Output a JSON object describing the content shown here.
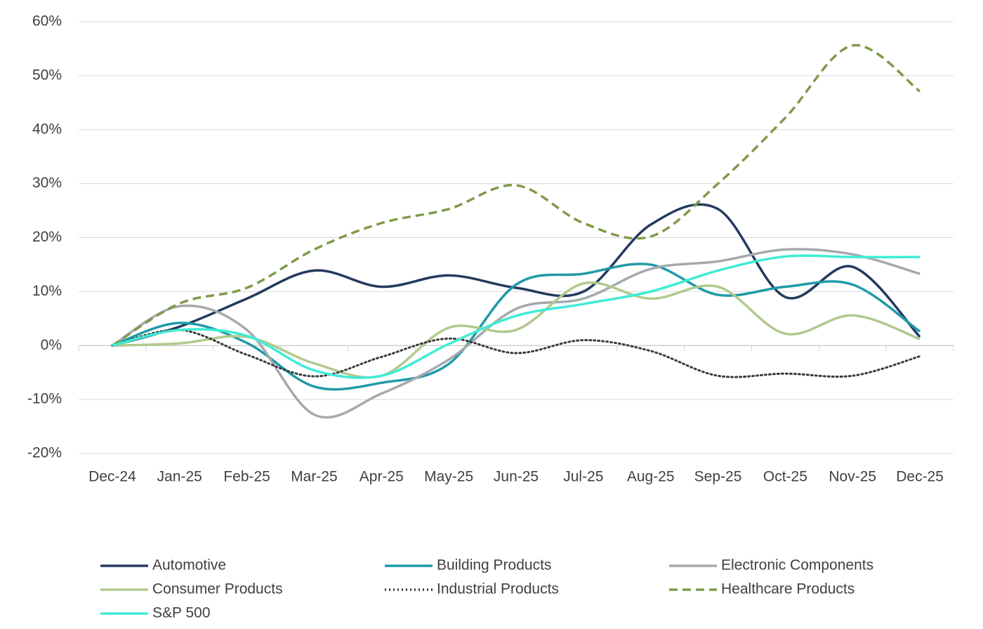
{
  "chart_data": {
    "type": "line",
    "categories": [
      "Dec-24",
      "Jan-25",
      "Feb-25",
      "Mar-25",
      "Apr-25",
      "May-25",
      "Jun-25",
      "Jul-25",
      "Aug-25",
      "Sep-25",
      "Oct-25",
      "Nov-25",
      "Dec-25"
    ],
    "ylim": [
      -20,
      60
    ],
    "yticks": [
      {
        "value": -20,
        "label": "-20%"
      },
      {
        "value": -10,
        "label": "-10%"
      },
      {
        "value": 0,
        "label": "0%"
      },
      {
        "value": 10,
        "label": "10%"
      },
      {
        "value": 20,
        "label": "20%"
      },
      {
        "value": 30,
        "label": "30%"
      },
      {
        "value": 40,
        "label": "40%"
      },
      {
        "value": 50,
        "label": "50%"
      },
      {
        "value": 60,
        "label": "60%"
      }
    ],
    "grid": true,
    "smooth": true,
    "legend": "bottom",
    "series": [
      {
        "name": "Automotive",
        "color": "#243a5e",
        "dash": "solid",
        "values": [
          0,
          3.5,
          8.7,
          13.9,
          10.9,
          13,
          10.7,
          10,
          22.4,
          25.3,
          9,
          14.6,
          1.6
        ]
      },
      {
        "name": "Building Products",
        "color": "#1f9aa8",
        "dash": "solid",
        "values": [
          0,
          4.2,
          0.5,
          -7.6,
          -6.9,
          -3.4,
          11.3,
          13.3,
          15,
          9.4,
          10.9,
          11.3,
          2.6
        ]
      },
      {
        "name": "Electronic Components",
        "color": "#a5a9ae",
        "dash": "solid",
        "values": [
          0,
          7.3,
          2.9,
          -12.8,
          -8.9,
          -2.6,
          6.8,
          8.7,
          14.2,
          15.6,
          17.8,
          16.9,
          13.3
        ]
      },
      {
        "name": "Consumer Products",
        "color": "#b1c98c",
        "dash": "solid",
        "values": [
          0,
          0.4,
          1.6,
          -3.3,
          -5.6,
          3.3,
          2.9,
          11.5,
          8.7,
          10.9,
          2.2,
          5.6,
          1.2
        ]
      },
      {
        "name": "Industrial Products",
        "color": "#3a3a3a",
        "dash": "dotted",
        "values": [
          0,
          2.9,
          -1.7,
          -5.7,
          -2.1,
          1.3,
          -1.4,
          1,
          -1,
          -5.6,
          -5.2,
          -5.6,
          -2
        ]
      },
      {
        "name": "Healthcare Products",
        "color": "#7f9b4a",
        "dash": "dashed",
        "values": [
          0,
          7.8,
          10.7,
          17.8,
          22.7,
          25.3,
          29.7,
          22.7,
          20.2,
          30,
          42.2,
          55.6,
          47.1
        ]
      },
      {
        "name": "S&P 500",
        "color": "#3eecd6",
        "dash": "solid",
        "values": [
          0,
          2.9,
          1.8,
          -4.6,
          -5.6,
          0.3,
          5.5,
          7.7,
          10,
          13.9,
          16.5,
          16.4,
          16.4
        ]
      }
    ]
  }
}
